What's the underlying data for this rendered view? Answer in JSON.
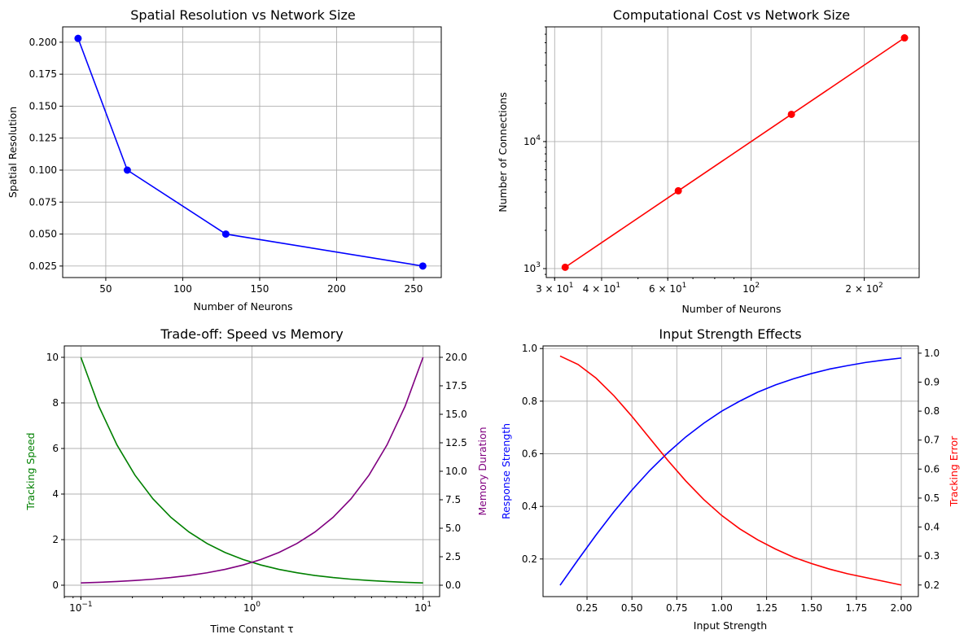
{
  "chart_data": [
    {
      "type": "line",
      "title": "Spatial Resolution vs Network Size",
      "xlabel": "Number of Neurons",
      "ylabel": "Spatial Resolution",
      "xlim": [
        22,
        268
      ],
      "ylim": [
        0.016,
        0.212
      ],
      "x_ticks": [
        50,
        100,
        150,
        200,
        250
      ],
      "x_tick_labels": [
        "50",
        "100",
        "150",
        "200",
        "250"
      ],
      "y_ticks": [
        0.025,
        0.05,
        0.075,
        0.1,
        0.125,
        0.15,
        0.175,
        0.2
      ],
      "y_tick_labels": [
        "0.025",
        "0.050",
        "0.075",
        "0.100",
        "0.125",
        "0.150",
        "0.175",
        "0.200"
      ],
      "grid": true,
      "series": [
        {
          "color": "#0000ff",
          "marker": "circle",
          "x": [
            32,
            64,
            128,
            256
          ],
          "y": [
            0.203,
            0.1,
            0.05,
            0.025
          ]
        }
      ]
    },
    {
      "type": "line",
      "title": "Computational Cost vs Network Size",
      "xlabel": "Number of Neurons",
      "ylabel": "Number of Connections",
      "xscale": "log",
      "yscale": "log",
      "xlim": [
        28.5,
        280
      ],
      "ylim": [
        850,
        80000
      ],
      "x_ticks": [
        30,
        40,
        60,
        100,
        200
      ],
      "x_tick_labels": [
        {
          "base": "3 × 10",
          "exp": "1"
        },
        {
          "base": "4 × 10",
          "exp": "1"
        },
        {
          "base": "6 × 10",
          "exp": "1"
        },
        {
          "base": "10",
          "exp": "2"
        },
        {
          "base": "2 × 10",
          "exp": "2"
        }
      ],
      "y_ticks": [
        1000,
        10000
      ],
      "y_tick_labels": [
        {
          "base": "10",
          "exp": "3"
        },
        {
          "base": "10",
          "exp": "4"
        }
      ],
      "grid": true,
      "series": [
        {
          "color": "#ff0000",
          "marker": "circle",
          "x": [
            32,
            64,
            128,
            256
          ],
          "y": [
            1024,
            4096,
            16384,
            65536
          ]
        }
      ]
    },
    {
      "type": "line",
      "title": "Trade-off: Speed vs Memory",
      "xlabel": "Time Constant τ",
      "xscale": "log",
      "xlim": [
        0.08,
        12.5
      ],
      "x_ticks": [
        0.1,
        1,
        10
      ],
      "x_tick_labels": [
        {
          "base": "10",
          "exp": "−1"
        },
        {
          "base": "10",
          "exp": "0"
        },
        {
          "base": "10",
          "exp": "1"
        }
      ],
      "grid": true,
      "left_axis": {
        "label": "Tracking Speed",
        "color": "#008000",
        "ylim": [
          -0.5,
          10.5
        ],
        "ticks": [
          0,
          2,
          4,
          6,
          8,
          10
        ],
        "tick_labels": [
          "0",
          "2",
          "4",
          "6",
          "8",
          "10"
        ]
      },
      "right_axis": {
        "label": "Memory Duration",
        "color": "#800080",
        "ylim": [
          -1.0,
          21.0
        ],
        "ticks": [
          0,
          2.5,
          5,
          7.5,
          10,
          12.5,
          15,
          17.5,
          20
        ],
        "tick_labels": [
          "0.0",
          "2.5",
          "5.0",
          "7.5",
          "10.0",
          "12.5",
          "15.0",
          "17.5",
          "20.0"
        ]
      },
      "series": [
        {
          "axis": "left",
          "color": "#008000",
          "x": [
            0.1,
            0.1274,
            0.1624,
            0.2069,
            0.2637,
            0.336,
            0.4281,
            0.5456,
            0.6952,
            0.8859,
            1.1288,
            1.4384,
            1.833,
            2.3357,
            2.9764,
            3.7927,
            4.8329,
            6.1585,
            7.8476,
            10.0
          ],
          "y": [
            10.0,
            7.848,
            6.158,
            4.833,
            3.793,
            2.976,
            2.336,
            1.833,
            1.438,
            1.129,
            0.886,
            0.695,
            0.546,
            0.428,
            0.336,
            0.264,
            0.207,
            0.162,
            0.127,
            0.1
          ]
        },
        {
          "axis": "right",
          "color": "#800080",
          "x": [
            0.1,
            0.1274,
            0.1624,
            0.2069,
            0.2637,
            0.336,
            0.4281,
            0.5456,
            0.6952,
            0.8859,
            1.1288,
            1.4384,
            1.833,
            2.3357,
            2.9764,
            3.7927,
            4.8329,
            6.1585,
            7.8476,
            10.0
          ],
          "y": [
            0.2,
            0.255,
            0.325,
            0.414,
            0.527,
            0.672,
            0.856,
            1.091,
            1.39,
            1.772,
            2.258,
            2.877,
            3.666,
            4.671,
            5.953,
            7.585,
            9.666,
            12.317,
            15.695,
            20.0
          ]
        }
      ]
    },
    {
      "type": "line",
      "title": "Input Strength Effects",
      "xlabel": "Input Strength",
      "xlim": [
        0.005,
        2.095
      ],
      "x_ticks": [
        0.25,
        0.5,
        0.75,
        1.0,
        1.25,
        1.5,
        1.75,
        2.0
      ],
      "x_tick_labels": [
        "0.25",
        "0.50",
        "0.75",
        "1.00",
        "1.25",
        "1.50",
        "1.75",
        "2.00"
      ],
      "grid": true,
      "left_axis": {
        "label": "Response Strength",
        "color": "#0000ff",
        "ylim": [
          0.057,
          1.01
        ],
        "ticks": [
          0.2,
          0.4,
          0.6,
          0.8,
          1.0
        ],
        "tick_labels": [
          "0.2",
          "0.4",
          "0.6",
          "0.8",
          "1.0"
        ]
      },
      "right_axis": {
        "label": "Tracking Error",
        "color": "#ff0000",
        "ylim": [
          0.16,
          1.025
        ],
        "ticks": [
          0.2,
          0.3,
          0.4,
          0.5,
          0.6,
          0.7,
          0.8,
          0.9,
          1.0
        ],
        "tick_labels": [
          "0.2",
          "0.3",
          "0.4",
          "0.5",
          "0.6",
          "0.7",
          "0.8",
          "0.9",
          "1.0"
        ]
      },
      "series": [
        {
          "axis": "left",
          "color": "#0000ff",
          "x": [
            0.1,
            0.2,
            0.3,
            0.4,
            0.5,
            0.6,
            0.7,
            0.8,
            0.9,
            1.0,
            1.1,
            1.2,
            1.3,
            1.4,
            1.5,
            1.6,
            1.7,
            1.8,
            1.9,
            2.0
          ],
          "y": [
            0.1,
            0.197,
            0.291,
            0.38,
            0.462,
            0.537,
            0.604,
            0.664,
            0.716,
            0.762,
            0.8,
            0.834,
            0.862,
            0.885,
            0.905,
            0.922,
            0.935,
            0.947,
            0.956,
            0.964
          ]
        },
        {
          "axis": "right",
          "color": "#ff0000",
          "x": [
            0.1,
            0.2,
            0.3,
            0.4,
            0.5,
            0.6,
            0.7,
            0.8,
            0.9,
            1.0,
            1.1,
            1.2,
            1.3,
            1.4,
            1.5,
            1.6,
            1.7,
            1.8,
            1.9,
            2.0
          ],
          "y": [
            0.99,
            0.961,
            0.914,
            0.853,
            0.782,
            0.706,
            0.63,
            0.559,
            0.495,
            0.44,
            0.394,
            0.356,
            0.324,
            0.296,
            0.274,
            0.255,
            0.239,
            0.226,
            0.213,
            0.2
          ]
        }
      ]
    }
  ]
}
